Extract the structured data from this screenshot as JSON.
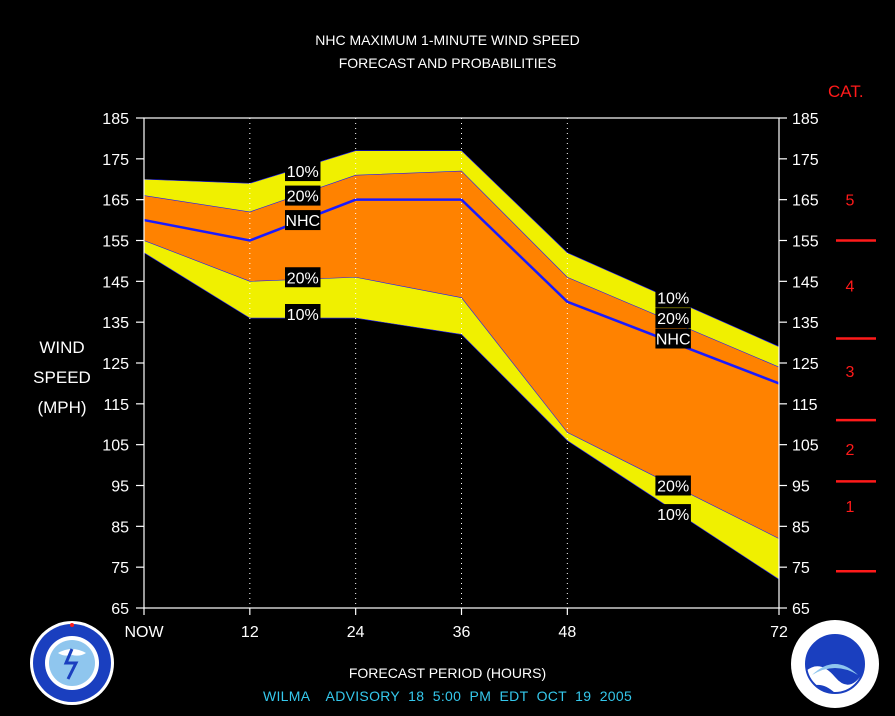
{
  "header": {
    "title_line1": "NHC MAXIMUM 1-MINUTE WIND SPEED",
    "title_line2": "FORECAST AND PROBABILITIES"
  },
  "footer": {
    "advisory": "WILMA    ADVISORY  18  5:00  PM  EDT  OCT  19  2005"
  },
  "colors": {
    "outer_band": "#f0f000",
    "inner_band": "#ff8200",
    "forecast_line": "#1a1aff",
    "category": "#ff1a1a",
    "footer": "#35c8ec"
  },
  "category_scale": {
    "title": "CAT.",
    "labels": [
      {
        "cat": "1",
        "mid_mph": 90
      },
      {
        "cat": "2",
        "mid_mph": 104
      },
      {
        "cat": "3",
        "mid_mph": 123
      },
      {
        "cat": "4",
        "mid_mph": 144
      },
      {
        "cat": "5",
        "mid_mph": 165
      }
    ],
    "thresholds_mph": [
      74,
      96,
      111,
      131,
      155
    ]
  },
  "chart_data": {
    "type": "area",
    "title": "NHC MAXIMUM 1-MINUTE WIND SPEED FORECAST AND PROBABILITIES",
    "xlabel": "FORECAST PERIOD (HOURS)",
    "ylabel": "WIND SPEED (MPH)",
    "ylabel_lines": [
      "WIND",
      "SPEED",
      "(MPH)"
    ],
    "ylim": [
      65,
      185
    ],
    "xlim": [
      0,
      72
    ],
    "yticks": [
      65,
      75,
      85,
      95,
      105,
      115,
      125,
      135,
      145,
      155,
      165,
      175,
      185
    ],
    "xticks": [
      {
        "value": 0,
        "label": "NOW"
      },
      {
        "value": 12,
        "label": "12"
      },
      {
        "value": 24,
        "label": "24"
      },
      {
        "value": 36,
        "label": "36"
      },
      {
        "value": 48,
        "label": "48"
      },
      {
        "value": 72,
        "label": "72"
      }
    ],
    "x": [
      0,
      12,
      24,
      36,
      48,
      72
    ],
    "series": [
      {
        "name": "10%",
        "role": "upper",
        "values": [
          170,
          169,
          177,
          177,
          152,
          129
        ]
      },
      {
        "name": "20%",
        "role": "upper",
        "values": [
          166,
          162,
          171,
          172,
          146,
          124
        ]
      },
      {
        "name": "NHC",
        "role": "forecast",
        "values": [
          160,
          155,
          165,
          165,
          140,
          120
        ]
      },
      {
        "name": "20%",
        "role": "lower",
        "values": [
          155,
          145,
          146,
          141,
          108,
          82
        ]
      },
      {
        "name": "10%",
        "role": "lower",
        "values": [
          152,
          136,
          136,
          132,
          106,
          72
        ]
      }
    ],
    "labels": [
      {
        "text": "10%",
        "x": 18,
        "y": 172
      },
      {
        "text": "20%",
        "x": 18,
        "y": 166
      },
      {
        "text": "NHC",
        "x": 18,
        "y": 160
      },
      {
        "text": "20%",
        "x": 18,
        "y": 146
      },
      {
        "text": "10%",
        "x": 18,
        "y": 137
      },
      {
        "text": "10%",
        "x": 60,
        "y": 141
      },
      {
        "text": "20%",
        "x": 60,
        "y": 136
      },
      {
        "text": "NHC",
        "x": 60,
        "y": 131
      },
      {
        "text": "20%",
        "x": 60,
        "y": 95
      },
      {
        "text": "10%",
        "x": 60,
        "y": 88
      }
    ],
    "grid_vertical": [
      12,
      24,
      36,
      48
    ],
    "grid": false
  }
}
